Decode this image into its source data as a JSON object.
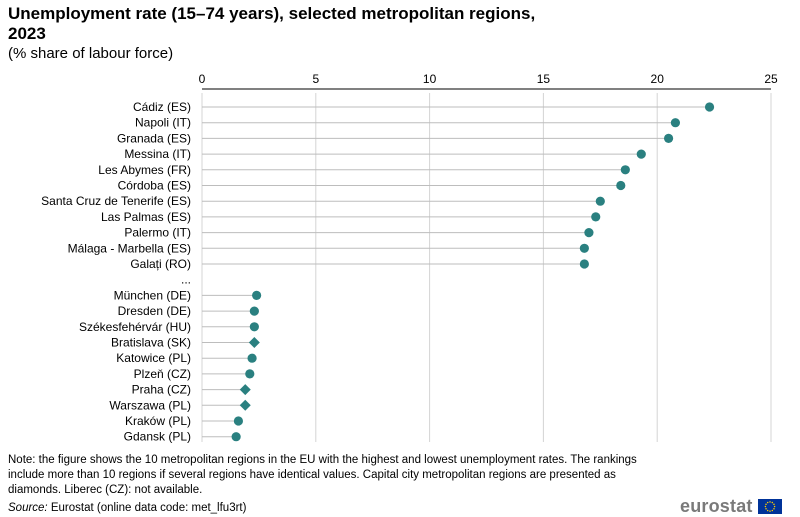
{
  "chart_data": {
    "type": "scatter",
    "orientation": "horizontal-dot",
    "title": "Unemployment rate (15–74 years), selected metropolitan regions, 2023",
    "subtitle": "(% share of labour force)",
    "xlim": [
      0,
      25
    ],
    "xticks": [
      0,
      5,
      10,
      15,
      20,
      25
    ],
    "grid": true,
    "marker_color": "#2a8080",
    "gap_label": "...",
    "rows": [
      {
        "label": "Cádiz (ES)",
        "value": 22.3,
        "capital": false
      },
      {
        "label": "Napoli (IT)",
        "value": 20.8,
        "capital": false
      },
      {
        "label": "Granada (ES)",
        "value": 20.5,
        "capital": false
      },
      {
        "label": "Messina (IT)",
        "value": 19.3,
        "capital": false
      },
      {
        "label": "Les Abymes (FR)",
        "value": 18.6,
        "capital": false
      },
      {
        "label": "Córdoba (ES)",
        "value": 18.4,
        "capital": false
      },
      {
        "label": "Santa Cruz de Tenerife (ES)",
        "value": 17.5,
        "capital": false
      },
      {
        "label": "Las Palmas (ES)",
        "value": 17.3,
        "capital": false
      },
      {
        "label": "Palermo (IT)",
        "value": 17.0,
        "capital": false
      },
      {
        "label": "Málaga - Marbella (ES)",
        "value": 16.8,
        "capital": false
      },
      {
        "label": "Galați (RO)",
        "value": 16.8,
        "capital": false
      },
      {
        "label": "...",
        "value": null,
        "capital": false
      },
      {
        "label": "München (DE)",
        "value": 2.4,
        "capital": false
      },
      {
        "label": "Dresden (DE)",
        "value": 2.3,
        "capital": false
      },
      {
        "label": "Székesfehérvár (HU)",
        "value": 2.3,
        "capital": false
      },
      {
        "label": "Bratislava (SK)",
        "value": 2.3,
        "capital": true
      },
      {
        "label": "Katowice (PL)",
        "value": 2.2,
        "capital": false
      },
      {
        "label": "Plzeň (CZ)",
        "value": 2.1,
        "capital": false
      },
      {
        "label": "Praha (CZ)",
        "value": 1.9,
        "capital": true
      },
      {
        "label": "Warszawa (PL)",
        "value": 1.9,
        "capital": true
      },
      {
        "label": "Kraków (PL)",
        "value": 1.6,
        "capital": false
      },
      {
        "label": "Gdansk (PL)",
        "value": 1.5,
        "capital": false
      }
    ]
  },
  "note": "Note: the figure shows the 10 metropolitan regions in the EU with the highest and lowest unemployment  rates. The rankings include more than 10 regions if several regions have identical values.  Capital city metropolitan regions are presented as diamonds. Liberec (CZ): not available.",
  "source": {
    "label": "Source:",
    "text": "Eurostat (online data code: met_lfu3rt)"
  },
  "logo": {
    "text": "eurostat",
    "flag_color": "#003399",
    "star_color": "#ffcc00"
  }
}
